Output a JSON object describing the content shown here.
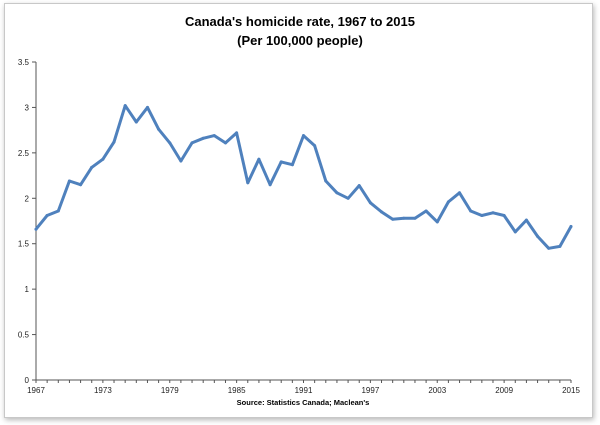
{
  "chart_data": {
    "type": "line",
    "title": "Canada's homicide rate, 1967 to 2015",
    "subtitle": "(Per 100,000 people)",
    "source": "Source: Statistics Canada; Maclean's",
    "xlabel": "",
    "ylabel": "",
    "ylim": [
      0,
      3.5
    ],
    "yticks": [
      "0",
      "0.5",
      "1",
      "1.5",
      "2",
      "2.5",
      "3",
      "3.5"
    ],
    "xticks": [
      "1967",
      "1973",
      "1979",
      "1985",
      "1991",
      "1997",
      "2003",
      "2009",
      "2015"
    ],
    "grid": false,
    "legend": "none",
    "line_color": "#4f81bd",
    "series": [
      {
        "x": [
          1967,
          1968,
          1969,
          1970,
          1971,
          1972,
          1973,
          1974,
          1975,
          1976,
          1977,
          1978,
          1979,
          1980,
          1981,
          1982,
          1983,
          1984,
          1985,
          1986,
          1987,
          1988,
          1989,
          1990,
          1991,
          1992,
          1993,
          1994,
          1995,
          1996,
          1997,
          1998,
          1999,
          2000,
          2001,
          2002,
          2003,
          2004,
          2005,
          2006,
          2007,
          2008,
          2009,
          2010,
          2011,
          2012,
          2013,
          2014,
          2015
        ],
        "values": [
          1.66,
          1.81,
          1.86,
          2.19,
          2.15,
          2.34,
          2.43,
          2.62,
          3.02,
          2.84,
          3.0,
          2.76,
          2.61,
          2.41,
          2.61,
          2.66,
          2.69,
          2.61,
          2.72,
          2.17,
          2.43,
          2.15,
          2.4,
          2.37,
          2.69,
          2.58,
          2.19,
          2.06,
          2.0,
          2.14,
          1.95,
          1.85,
          1.77,
          1.78,
          1.78,
          1.86,
          1.74,
          1.96,
          2.06,
          1.86,
          1.81,
          1.84,
          1.81,
          1.63,
          1.76,
          1.58,
          1.45,
          1.47,
          1.69
        ]
      }
    ]
  }
}
